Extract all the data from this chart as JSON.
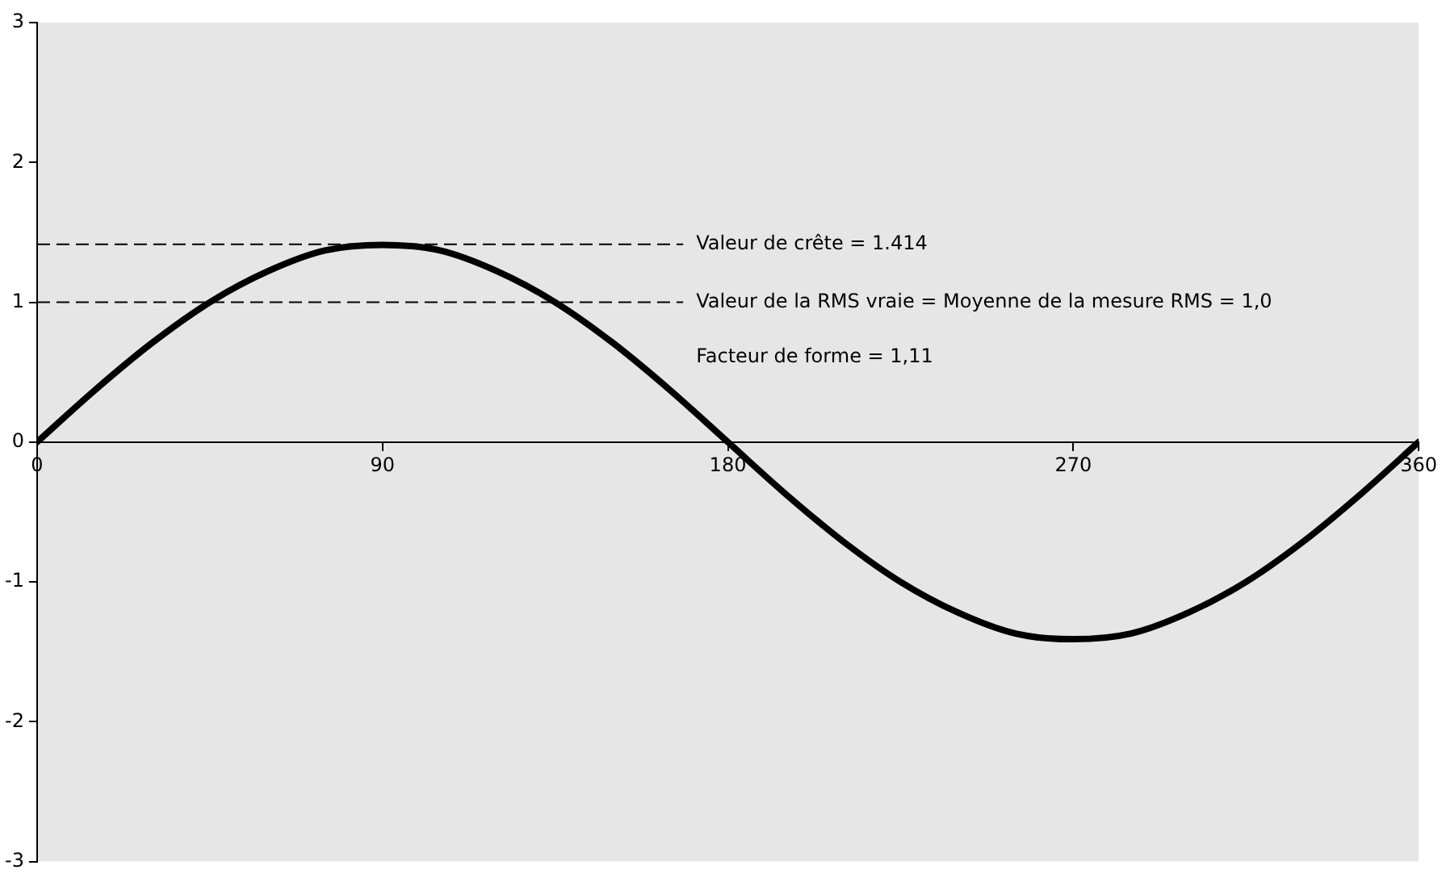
{
  "chart_data": {
    "type": "line",
    "x": [
      0,
      15,
      30,
      45,
      60,
      75,
      90,
      105,
      120,
      135,
      150,
      165,
      180,
      195,
      210,
      225,
      240,
      255,
      270,
      285,
      300,
      315,
      330,
      345,
      360
    ],
    "series": [
      {
        "color": "#000000",
        "values": [
          0,
          0.37,
          0.71,
          1.0,
          1.22,
          1.37,
          1.41,
          1.37,
          1.22,
          1.0,
          0.71,
          0.37,
          0,
          -0.37,
          -0.71,
          -1.0,
          -1.22,
          -1.37,
          -1.41,
          -1.37,
          -1.22,
          -1.0,
          -0.71,
          -0.37,
          0
        ]
      }
    ],
    "xlim": [
      0,
      360
    ],
    "xticks": [
      0,
      90,
      180,
      270,
      360
    ],
    "ylim": [
      -3,
      3
    ],
    "yticks": [
      -3,
      -2,
      -1,
      0,
      1,
      2,
      3
    ],
    "ref_lines": [
      {
        "axis": "y",
        "value": 1.414,
        "label": "Valeur de crête = 1.414",
        "color": "#000000",
        "line_style": "dashed"
      },
      {
        "axis": "y",
        "value": 1.0,
        "label": "Valeur de la RMS vraie = Moyenne de la mesure RMS = 1,0",
        "color": "#000000",
        "line_style": "dashed"
      }
    ],
    "annotations": [
      "Facteur de forme = 1,11"
    ],
    "grid": false,
    "legend": false,
    "marker": "none",
    "line_style": "solid"
  }
}
